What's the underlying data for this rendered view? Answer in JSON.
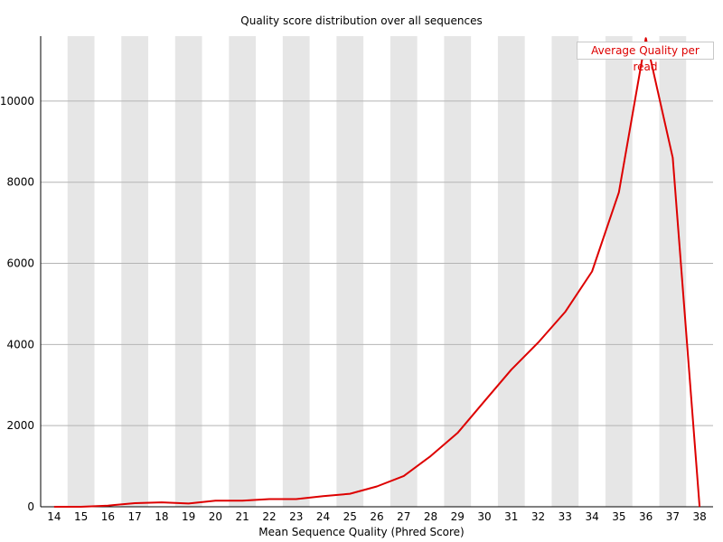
{
  "chart_data": {
    "type": "line",
    "title": "Quality score distribution over all sequences",
    "xlabel": "Mean Sequence Quality (Phred Score)",
    "ylabel": "",
    "categories": [
      "14",
      "15",
      "16",
      "17",
      "18",
      "19",
      "20",
      "21",
      "22",
      "23",
      "24",
      "25",
      "26",
      "27",
      "28",
      "29",
      "30",
      "31",
      "32",
      "33",
      "34",
      "35",
      "36",
      "37",
      "38"
    ],
    "series": [
      {
        "name": "Average Quality per read",
        "color": "#dd0000",
        "values": [
          0,
          0,
          30,
          90,
          110,
          80,
          150,
          150,
          190,
          190,
          260,
          320,
          500,
          760,
          1250,
          1820,
          2600,
          3380,
          4050,
          4800,
          5800,
          7750,
          11550,
          8600,
          0
        ]
      }
    ],
    "ylim": [
      0,
      11600
    ],
    "yticks": [
      0,
      2000,
      4000,
      6000,
      8000,
      10000
    ],
    "grid": true,
    "legend_position": "top-right"
  },
  "colors": {
    "band": "#e6e6e6",
    "grid": "#b4b4b4",
    "line": "#dd0000",
    "axis": "#000000"
  }
}
